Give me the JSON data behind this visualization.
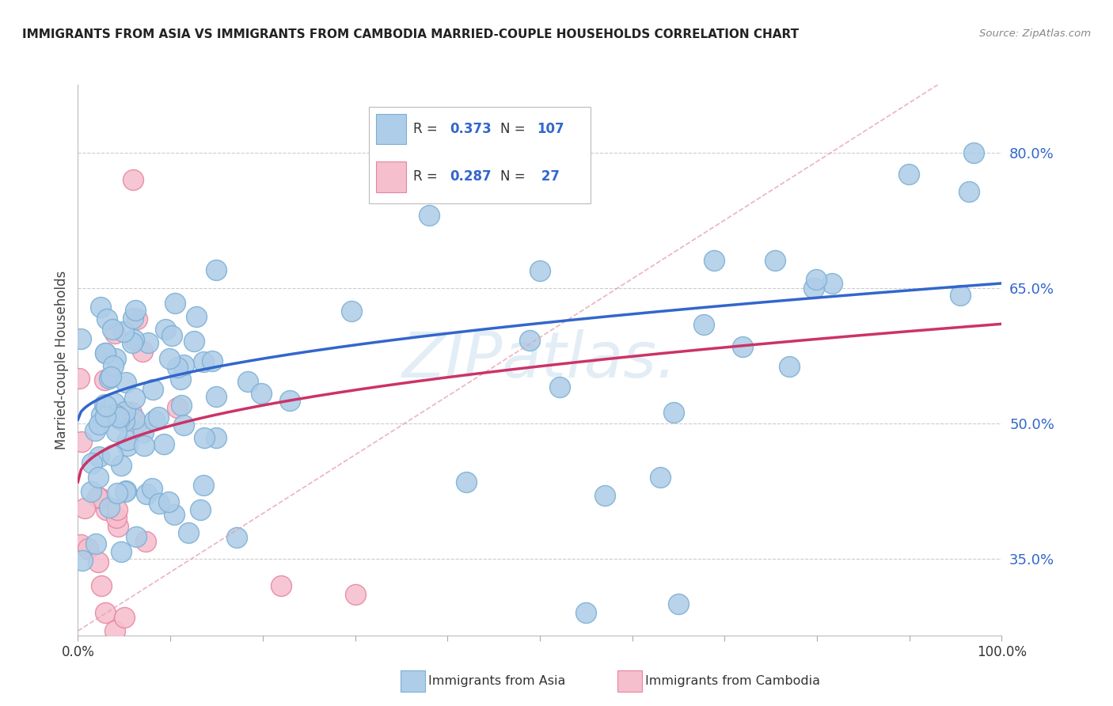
{
  "title": "IMMIGRANTS FROM ASIA VS IMMIGRANTS FROM CAMBODIA MARRIED-COUPLE HOUSEHOLDS CORRELATION CHART",
  "source": "Source: ZipAtlas.com",
  "ylabel": "Married-couple Households",
  "y_ticks": [
    0.35,
    0.5,
    0.65,
    0.8
  ],
  "y_tick_labels": [
    "35.0%",
    "50.0%",
    "65.0%",
    "80.0%"
  ],
  "xlim": [
    0.0,
    1.0
  ],
  "ylim": [
    0.265,
    0.875
  ],
  "series1_color": "#aecde8",
  "series1_edge": "#7bafd4",
  "series2_color": "#f5bfce",
  "series2_edge": "#e8849e",
  "line1_color": "#3366cc",
  "line2_color": "#cc3366",
  "dash_color": "#e8a0b0",
  "watermark_color": "#ccdff0",
  "grid_color": "#cccccc",
  "title_color": "#222222",
  "source_color": "#888888",
  "tick_color": "#3366cc",
  "label_color": "#444444",
  "legend_text_color": "#333333",
  "legend_value_color": "#3366cc"
}
